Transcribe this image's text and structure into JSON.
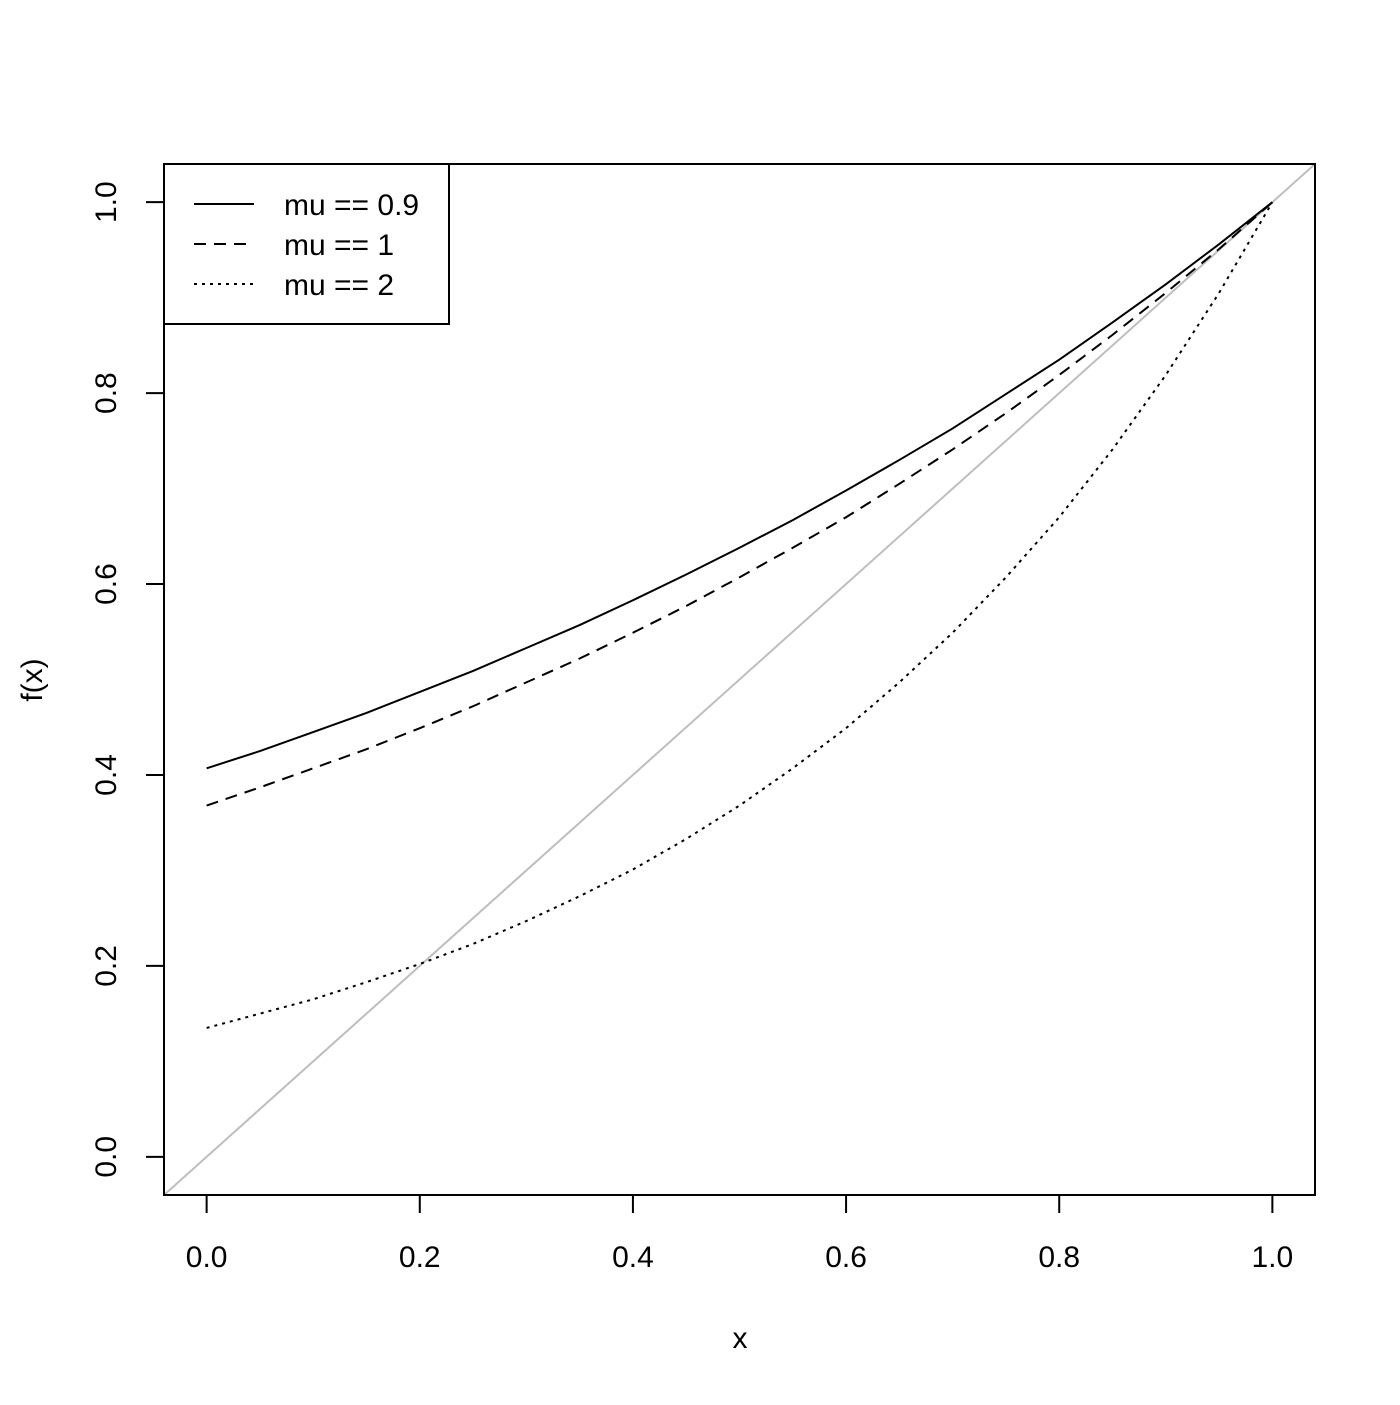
{
  "chart_data": {
    "type": "line",
    "xlabel": "x",
    "ylabel": "f(x)",
    "x": [
      0,
      0.05,
      0.1,
      0.15,
      0.2,
      0.25,
      0.3,
      0.35,
      0.4,
      0.45,
      0.5,
      0.55,
      0.6,
      0.65,
      0.7,
      0.75,
      0.8,
      0.85,
      0.9,
      0.95,
      1
    ],
    "series": [
      {
        "name": "mu == 0.9",
        "color": "#000000",
        "dash": "solid",
        "values": [
          0.407,
          0.425,
          0.445,
          0.465,
          0.487,
          0.509,
          0.533,
          0.557,
          0.583,
          0.61,
          0.638,
          0.667,
          0.698,
          0.73,
          0.763,
          0.799,
          0.835,
          0.874,
          0.914,
          0.956,
          1
        ]
      },
      {
        "name": "mu == 1",
        "color": "#000000",
        "dash": "dashed",
        "values": [
          0.368,
          0.387,
          0.407,
          0.427,
          0.449,
          0.472,
          0.497,
          0.522,
          0.549,
          0.577,
          0.607,
          0.638,
          0.67,
          0.705,
          0.741,
          0.779,
          0.819,
          0.861,
          0.905,
          0.951,
          1
        ]
      },
      {
        "name": "mu == 2",
        "color": "#000000",
        "dash": "dotted",
        "values": [
          0.135,
          0.15,
          0.165,
          0.183,
          0.202,
          0.223,
          0.247,
          0.273,
          0.301,
          0.333,
          0.368,
          0.407,
          0.449,
          0.497,
          0.549,
          0.607,
          0.67,
          0.741,
          0.819,
          0.905,
          1
        ]
      }
    ],
    "abline": {
      "intercept": 0,
      "slope": 1,
      "color": "#bebebe"
    },
    "xlim": [
      -0.04,
      1.04
    ],
    "ylim": [
      -0.04,
      1.04
    ],
    "xticks": [
      {
        "value": 0,
        "label": "0.0"
      },
      0.2,
      0.4,
      0.6,
      0.8,
      {
        "value": 1,
        "label": "1.0"
      }
    ],
    "yticks": [
      {
        "value": 0,
        "label": "0.0"
      },
      0.2,
      0.4,
      0.6,
      0.8,
      {
        "value": 1,
        "label": "1.0"
      }
    ],
    "legend": "topleft"
  }
}
